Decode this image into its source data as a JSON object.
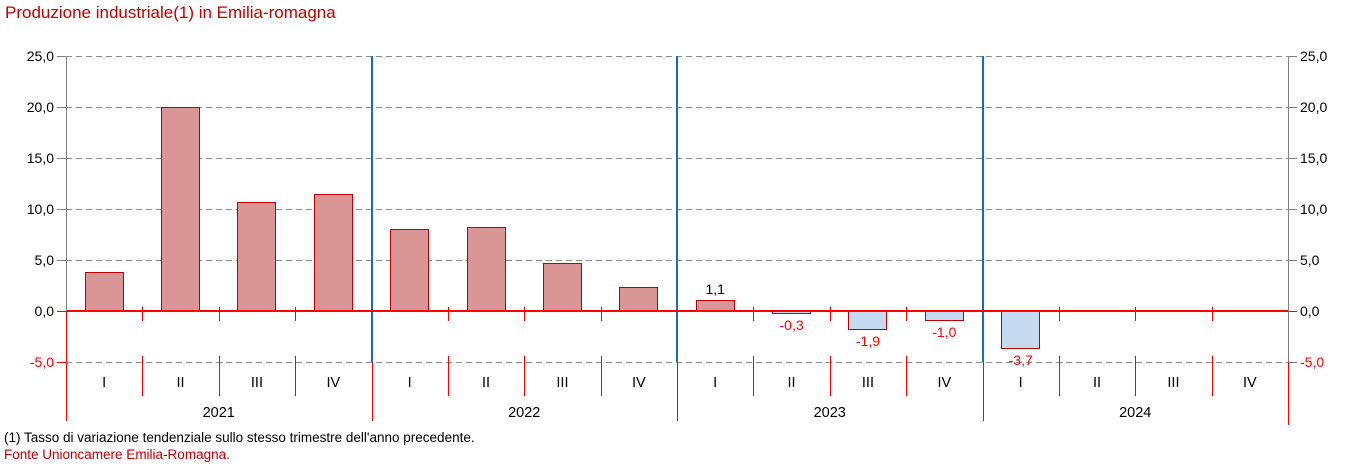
{
  "page": {
    "title": "Produzione industriale(1) in Emilia-romagna",
    "footnote": "(1) Tasso di variazione tendenziale sullo stesso trimestre dell'anno precedente.",
    "source": "Fonte Unioncamere Emilia-Romagna."
  },
  "chart_data": {
    "type": "bar",
    "title": "Produzione industriale(1) in Emilia-romagna",
    "x_quarter_labels": [
      "I",
      "II",
      "III",
      "IV",
      "I",
      "II",
      "III",
      "IV",
      "I",
      "II",
      "III",
      "IV",
      "I",
      "II",
      "III",
      "IV"
    ],
    "year_groups": [
      "2021",
      "2022",
      "2023",
      "2024"
    ],
    "values": [
      3.8,
      20.0,
      10.7,
      11.5,
      8.0,
      8.2,
      4.7,
      2.4,
      1.1,
      -0.3,
      -1.9,
      -1.0,
      -3.7,
      null,
      null,
      null
    ],
    "bar_labels": [
      null,
      null,
      null,
      null,
      null,
      null,
      null,
      null,
      "1,1",
      "-0,3",
      "-1,9",
      "-1,0",
      "-3,7",
      null,
      null,
      null
    ],
    "ylim": [
      -5,
      25
    ],
    "ytick_step": 5,
    "yticks": [
      {
        "value": 25,
        "label": "25,0"
      },
      {
        "value": 20,
        "label": "20,0"
      },
      {
        "value": 15,
        "label": "15,0"
      },
      {
        "value": 10,
        "label": "10,0"
      },
      {
        "value": 5,
        "label": "5,0"
      },
      {
        "value": 0,
        "label": "0,0"
      },
      {
        "value": -5,
        "label": "-5,0"
      }
    ],
    "grid": "horizontal-dashed",
    "legend": "none",
    "axis_labels_both_sides": true,
    "colors": {
      "positive_fill": "#D99694",
      "negative_fill": "#C5D9F1",
      "bar_border": "#C00000",
      "zero_line": "#FF0000",
      "structure_red": "#FF0000",
      "year_separator": "#1170B8",
      "gridline": "#8C8C8C",
      "axis_gray": "#808080",
      "negative_text": "#FF0000",
      "title_color": "#C00000"
    }
  }
}
